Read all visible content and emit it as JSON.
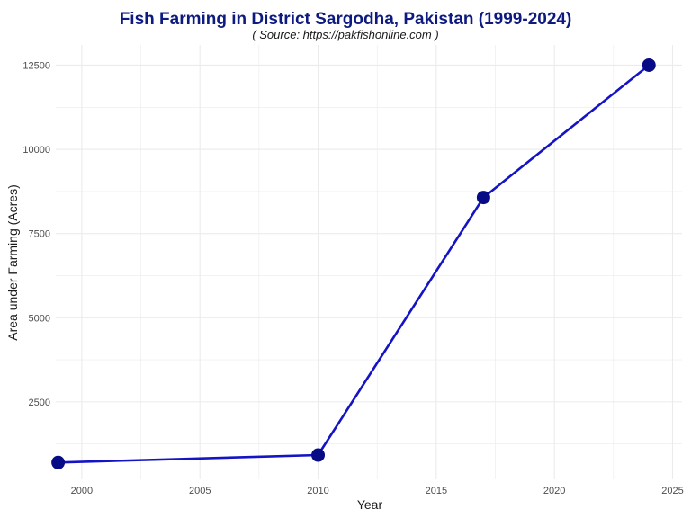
{
  "chart_data": {
    "type": "line",
    "title": "Fish Farming in District Sargodha, Pakistan (1999-2024)",
    "subtitle": "( Source: https://pakfishonline.com )",
    "xlabel": "Year",
    "ylabel": "Area under Farming (Acres)",
    "x": [
      1999,
      2010,
      2017,
      2024
    ],
    "series": [
      {
        "values": [
          700,
          920,
          8570,
          12500
        ]
      }
    ],
    "xlim": [
      1998.9,
      2025.4
    ],
    "ylim": [
      200,
      13100
    ],
    "xticks": [
      "2000",
      "2005",
      "2010",
      "2015",
      "2020",
      "2025"
    ],
    "yticks": [
      "2500",
      "5000",
      "7500",
      "10000",
      "12500"
    ],
    "grid": true,
    "legend": "none",
    "colors": {
      "line": "#1414c4",
      "point": "#070b85",
      "grid": "#ebebeb"
    }
  }
}
